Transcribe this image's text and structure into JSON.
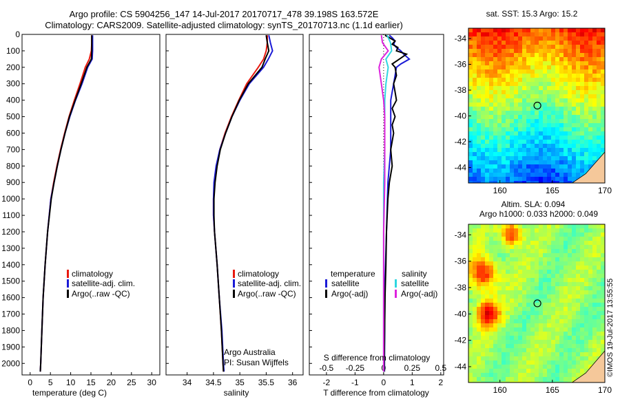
{
  "header": {
    "title_line1": "Argo profile: CS 5904256_147 14-Jul-2017 20170717_478 39.198S 163.572E",
    "title_line2": "Climatology: CARS2009. Satellite-adjusted climatology: synTS_20170713.nc (1.1d earlier)"
  },
  "footer": {
    "credit_line1": "Argo Australia",
    "credit_line2": "PI: Susan Wijffels",
    "stamp": "©IMOS 19-Jul-2017 13:55:55"
  },
  "colors": {
    "climatology": "#e8190f",
    "satellite": "#1a1ad6",
    "argo": "#000000",
    "salinity_satellite": "#2fd6e0",
    "salinity_argo": "#dd22dd"
  },
  "chart_data": [
    {
      "type": "line",
      "xlabel": "temperature (deg C)",
      "ylabel": "",
      "xlim": [
        -2,
        32
      ],
      "ylim": [
        2070,
        0
      ],
      "xticks": [
        0,
        5,
        10,
        15,
        20,
        25,
        30
      ],
      "yticks": [
        0,
        100,
        200,
        300,
        400,
        500,
        600,
        700,
        800,
        900,
        1000,
        1100,
        1200,
        1300,
        1400,
        1500,
        1600,
        1700,
        1800,
        1900,
        2000
      ],
      "legend": [
        "climatology",
        "satellite-adj. clim.",
        "Argo(..raw -QC)"
      ],
      "series": [
        {
          "name": "climatology",
          "color": "#e8190f",
          "depth": [
            5,
            50,
            100,
            150,
            200,
            300,
            400,
            500,
            600,
            700,
            800,
            900,
            1000,
            1200,
            1400,
            1600,
            1800,
            2000,
            2050
          ],
          "values": [
            15.2,
            15.2,
            15.1,
            14.6,
            13.6,
            12.3,
            10.9,
            9.6,
            8.5,
            7.5,
            6.6,
            5.8,
            5.1,
            4.3,
            3.7,
            3.2,
            2.9,
            2.6,
            2.5
          ]
        },
        {
          "name": "satellite-adj. clim.",
          "color": "#1a1ad6",
          "depth": [
            5,
            50,
            100,
            150,
            200,
            300,
            400,
            500,
            600,
            700,
            800,
            900,
            1000,
            1200,
            1400,
            1600,
            1800,
            2000,
            2050
          ],
          "values": [
            15.4,
            15.4,
            15.4,
            15.3,
            14.2,
            12.8,
            11.2,
            9.8,
            8.6,
            7.6,
            6.7,
            5.9,
            5.1,
            4.3,
            3.7,
            3.2,
            2.9,
            2.6,
            2.5
          ]
        },
        {
          "name": "Argo(..raw -QC)",
          "color": "#000000",
          "depth": [
            5,
            50,
            100,
            150,
            200,
            300,
            400,
            500,
            600,
            700,
            800,
            900,
            1000,
            1200,
            1400,
            1600,
            1800,
            2000,
            2050
          ],
          "values": [
            15.2,
            15.2,
            15.2,
            15.1,
            14.0,
            12.6,
            11.1,
            9.7,
            8.6,
            7.6,
            6.7,
            5.9,
            5.2,
            4.3,
            3.7,
            3.2,
            2.9,
            2.6,
            2.5
          ]
        }
      ]
    },
    {
      "type": "line",
      "xlabel": "salinity",
      "ylabel": "",
      "xlim": [
        33.6,
        36.2
      ],
      "ylim": [
        2070,
        0
      ],
      "xticks": [
        34,
        34.5,
        35,
        35.5,
        36
      ],
      "yticks": [],
      "legend": [
        "climatology",
        "satellite-adj. clim.",
        "Argo(..raw -QC)"
      ],
      "series": [
        {
          "name": "climatology",
          "color": "#e8190f",
          "depth": [
            5,
            50,
            100,
            150,
            200,
            300,
            400,
            500,
            600,
            700,
            800,
            900,
            1000,
            1100,
            1200,
            1400,
            1600,
            1800,
            2000,
            2050
          ],
          "values": [
            35.52,
            35.52,
            35.5,
            35.45,
            35.35,
            35.13,
            34.98,
            34.84,
            34.72,
            34.62,
            34.56,
            34.52,
            34.5,
            34.5,
            34.52,
            34.57,
            34.61,
            34.65,
            34.68,
            34.69
          ]
        },
        {
          "name": "satellite-adj. clim.",
          "color": "#1a1ad6",
          "depth": [
            5,
            50,
            100,
            150,
            200,
            300,
            400,
            500,
            600,
            700,
            800,
            900,
            1000,
            1100,
            1200,
            1400,
            1600,
            1800,
            2000,
            2050
          ],
          "values": [
            35.55,
            35.58,
            35.62,
            35.54,
            35.45,
            35.18,
            35.0,
            34.85,
            34.73,
            34.62,
            34.55,
            34.51,
            34.5,
            34.5,
            34.52,
            34.57,
            34.61,
            34.66,
            34.69,
            34.7
          ]
        },
        {
          "name": "Argo(..raw -QC)",
          "color": "#000000",
          "depth": [
            5,
            50,
            100,
            150,
            200,
            300,
            400,
            500,
            600,
            700,
            800,
            900,
            1000,
            1100,
            1200,
            1400,
            1600,
            1800,
            2000,
            2050
          ],
          "values": [
            35.5,
            35.52,
            35.55,
            35.48,
            35.42,
            35.16,
            34.99,
            34.85,
            34.73,
            34.63,
            34.57,
            34.53,
            34.51,
            34.51,
            34.52,
            34.57,
            34.61,
            34.65,
            34.68,
            34.69
          ]
        }
      ]
    },
    {
      "type": "line",
      "xlabel": "T difference from climatology",
      "x2label": "S difference from climatology",
      "ylabel": "",
      "xlim": [
        -2.6,
        2.1
      ],
      "x2lim": [
        -0.65,
        0.525
      ],
      "ylim": [
        2070,
        0
      ],
      "xticks": [
        -2,
        -1,
        0,
        1,
        2
      ],
      "x2ticks": [
        -0.5,
        -0.25,
        0,
        0.25,
        0.5
      ],
      "legend_temperature_header": "temperature",
      "legend_salinity_header": "salinity",
      "legend": [
        "satellite",
        "Argo(-adj)",
        "satellite",
        "Argo(-adj)"
      ],
      "series": [
        {
          "name": "satellite",
          "group": "temperature",
          "color": "#1a1ad6",
          "depth": [
            5,
            20,
            40,
            60,
            80,
            100,
            120,
            150,
            180,
            200,
            250,
            300,
            350,
            400,
            500,
            700,
            900,
            1200,
            1500,
            2000,
            2050
          ],
          "values": [
            0.2,
            0.3,
            0.4,
            0.35,
            0.45,
            0.6,
            0.7,
            0.9,
            0.6,
            0.45,
            0.4,
            0.35,
            0.3,
            0.25,
            0.25,
            0.25,
            0.15,
            0.1,
            0.05,
            0.03,
            0.03
          ]
        },
        {
          "name": "Argo(-adj)",
          "group": "temperature",
          "color": "#000000",
          "depth": [
            5,
            20,
            40,
            60,
            80,
            100,
            120,
            150,
            180,
            200,
            250,
            300,
            350,
            400,
            450,
            500,
            550,
            600,
            700,
            800,
            900,
            1000,
            1200,
            1400,
            1600,
            2000,
            2050
          ],
          "values": [
            0.05,
            0.2,
            0.4,
            0.3,
            0.5,
            0.45,
            0.8,
            0.55,
            0.3,
            0.4,
            0.45,
            0.35,
            0.4,
            0.45,
            0.3,
            0.4,
            0.3,
            0.35,
            0.25,
            0.3,
            0.2,
            0.15,
            0.1,
            0.08,
            0.05,
            0.02,
            0.02
          ]
        },
        {
          "name": "satellite",
          "group": "salinity",
          "color": "#2fd6e0",
          "depth": [
            5,
            50,
            100,
            150,
            200,
            300,
            400,
            500,
            700,
            900,
            1200,
            1500,
            2000,
            2050
          ],
          "values": [
            0.03,
            0.06,
            0.07,
            0.02,
            0.04,
            0.02,
            0.01,
            0.01,
            0.01,
            0.0,
            0.0,
            0.0,
            0.0,
            0.0
          ]
        },
        {
          "name": "Argo(-adj)",
          "group": "salinity",
          "color": "#dd22dd",
          "depth": [
            5,
            50,
            100,
            150,
            200,
            300,
            400,
            500,
            700,
            900,
            1200,
            1500,
            2000,
            2050
          ],
          "values": [
            -0.02,
            -0.01,
            0.04,
            -0.02,
            -0.04,
            -0.02,
            0.0,
            0.01,
            0.01,
            0.01,
            0.0,
            0.0,
            0.0,
            0.0
          ]
        }
      ]
    },
    {
      "type": "heatmap",
      "title": "sat. SST: 15.3 Argo: 15.2",
      "xlim": [
        157,
        170
      ],
      "ylim": [
        -45.2,
        -33.2
      ],
      "xticks": [
        160,
        165,
        170
      ],
      "yticks": [
        -34,
        -36,
        -38,
        -40,
        -42,
        -44
      ],
      "marker": {
        "lon": 163.572,
        "lat": -39.198
      },
      "colormap": "jet (warm north, cold south)"
    },
    {
      "type": "heatmap",
      "title": "Altim. SLA: 0.094",
      "subtitle": "Argo h1000: 0.033 h2000: 0.049",
      "xlim": [
        157,
        170
      ],
      "ylim": [
        -45.2,
        -33.2
      ],
      "xticks": [
        160,
        165,
        170
      ],
      "yticks": [
        -34,
        -36,
        -38,
        -40,
        -42,
        -44
      ],
      "marker": {
        "lon": 163.572,
        "lat": -39.198
      },
      "colormap": "green field with orange/yellow highs"
    }
  ]
}
